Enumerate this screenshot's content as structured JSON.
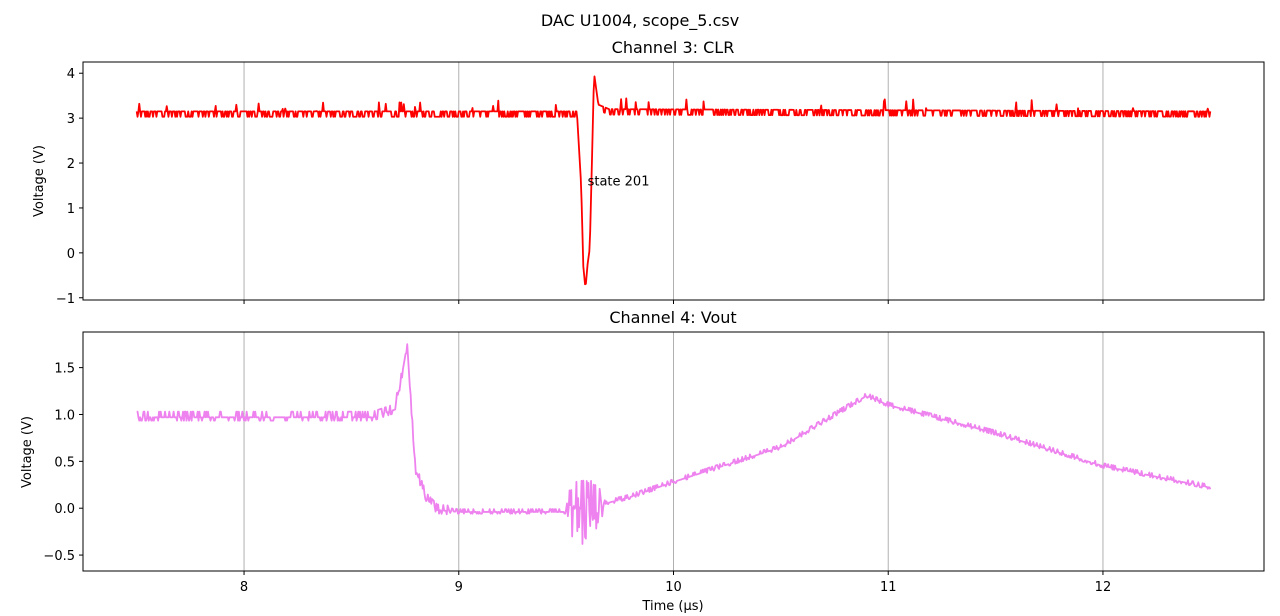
{
  "figure": {
    "suptitle": "DAC U1004, scope_5.csv"
  },
  "chart_data": [
    {
      "type": "line",
      "title": "Channel 3: CLR",
      "xlabel": "",
      "ylabel": "Voltage (V)",
      "xlim": [
        7.25,
        12.75
      ],
      "ylim": [
        -1.05,
        4.25
      ],
      "xticks": [
        8,
        9,
        10,
        11,
        12
      ],
      "yticks": [
        -1,
        0,
        1,
        2,
        3,
        4
      ],
      "ytick_labels": [
        "−1",
        "0",
        "1",
        "2",
        "3",
        "4"
      ],
      "grid": "vertical",
      "color": "#ff0000",
      "annotation": {
        "text": "state 201",
        "x": 9.6,
        "y": 1.5
      },
      "series": [
        {
          "x": [
            7.5,
            9.55,
            9.57,
            9.58,
            9.59,
            9.6,
            9.61,
            9.62,
            9.63,
            9.65,
            9.7,
            12.5
          ],
          "y": [
            3.15,
            3.15,
            1.5,
            -0.3,
            -0.8,
            -0.25,
            0.1,
            2.0,
            4.0,
            3.3,
            3.2,
            3.15
          ],
          "noise": {
            "amplitude": 0.12,
            "spikes": 0.25
          }
        }
      ]
    },
    {
      "type": "line",
      "title": "Channel 4: Vout",
      "xlabel": "Time (µs)",
      "ylabel": "Voltage (V)",
      "xlim": [
        7.25,
        12.75
      ],
      "ylim": [
        -0.67,
        1.88
      ],
      "xticks": [
        8,
        9,
        10,
        11,
        12
      ],
      "xtick_labels": [
        "8",
        "9",
        "10",
        "11",
        "12"
      ],
      "yticks": [
        -0.5,
        0.0,
        0.5,
        1.0,
        1.5
      ],
      "ytick_labels": [
        "−0.5",
        "0.0",
        "0.5",
        "1.0",
        "1.5"
      ],
      "grid": "vertical",
      "color": "#ee82ee",
      "series": [
        {
          "x": [
            7.5,
            8.6,
            8.7,
            8.73,
            8.76,
            8.78,
            8.8,
            8.85,
            8.9,
            9.0,
            9.5,
            9.6,
            9.8,
            10.0,
            10.5,
            10.9,
            11.0,
            11.5,
            12.0,
            12.5
          ],
          "y": [
            0.97,
            0.97,
            1.05,
            1.35,
            1.75,
            1.0,
            0.4,
            0.1,
            -0.02,
            -0.04,
            -0.04,
            0.0,
            0.12,
            0.28,
            0.65,
            1.2,
            1.1,
            0.8,
            0.45,
            0.22
          ],
          "noise": {
            "amplitude": 0.06,
            "burst": {
              "x": [
                9.5,
                9.7
              ],
              "amplitude": 0.5
            }
          }
        }
      ]
    }
  ]
}
